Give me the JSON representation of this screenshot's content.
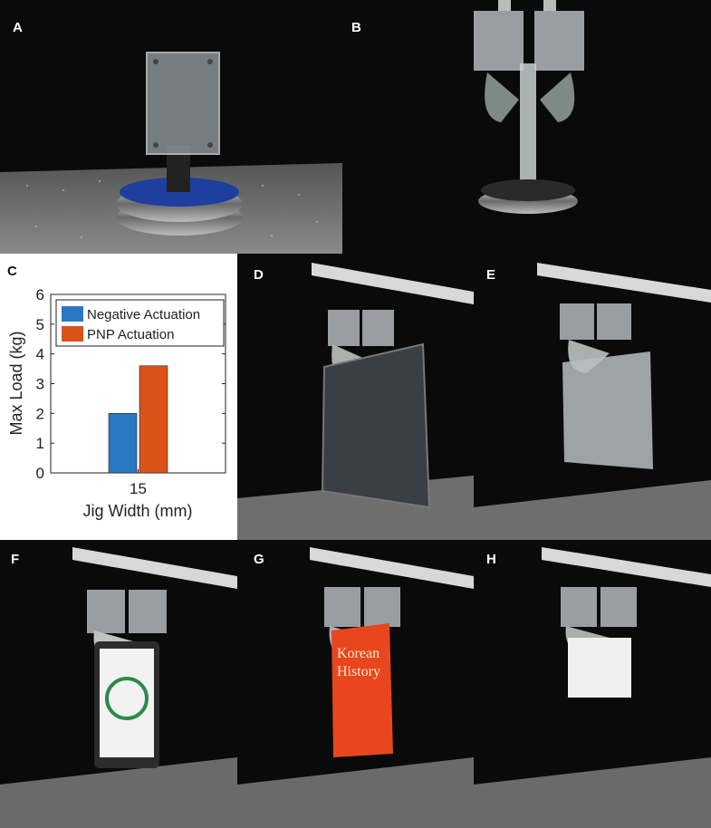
{
  "panels": {
    "A": "A",
    "B": "B",
    "C": "C",
    "D": "D",
    "E": "E",
    "F": "F",
    "G": "G",
    "H": "H"
  },
  "book": {
    "line1": "Korean",
    "line2": "History"
  },
  "chart_data": {
    "type": "bar",
    "categories": [
      "15"
    ],
    "series": [
      {
        "name": "Negative Actuation",
        "values": [
          2.0
        ],
        "color": "#2b78c2"
      },
      {
        "name": "PNP Actuation",
        "values": [
          3.6
        ],
        "color": "#d95319"
      }
    ],
    "xlabel": "Jig Width (mm)",
    "ylabel": "Max Load (kg)",
    "ylim": [
      0,
      6
    ],
    "yticks": [
      0,
      1,
      2,
      3,
      4,
      5,
      6
    ],
    "legend": "top-left",
    "grid": false
  }
}
